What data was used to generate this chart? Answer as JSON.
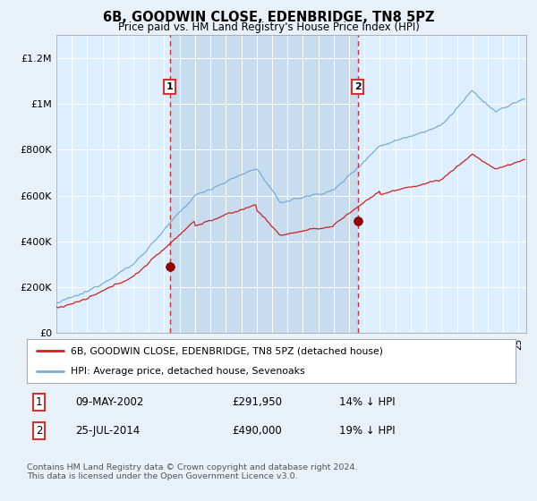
{
  "title": "6B, GOODWIN CLOSE, EDENBRIDGE, TN8 5PZ",
  "subtitle": "Price paid vs. HM Land Registry's House Price Index (HPI)",
  "background_color": "#e8f0f8",
  "plot_bg_color": "#ddeeff",
  "highlight_color": "#c8dcf0",
  "transaction1": {
    "date": "09-MAY-2002",
    "price": 291950,
    "x_year": 2002.36
  },
  "transaction2": {
    "date": "25-JUL-2014",
    "price": 490000,
    "x_year": 2014.56
  },
  "legend1": "6B, GOODWIN CLOSE, EDENBRIDGE, TN8 5PZ (detached house)",
  "legend2": "HPI: Average price, detached house, Sevenoaks",
  "table_row1": [
    "1",
    "09-MAY-2002",
    "£291,950",
    "14% ↓ HPI"
  ],
  "table_row2": [
    "2",
    "25-JUL-2014",
    "£490,000",
    "19% ↓ HPI"
  ],
  "footnote": "Contains HM Land Registry data © Crown copyright and database right 2024.\nThis data is licensed under the Open Government Licence v3.0.",
  "ylim": [
    0,
    1300000
  ],
  "xlim_start": 1995.0,
  "xlim_end": 2025.5,
  "hpi_color": "#7aadd4",
  "prop_color": "#cc2222",
  "vline_color": "#cc3333"
}
